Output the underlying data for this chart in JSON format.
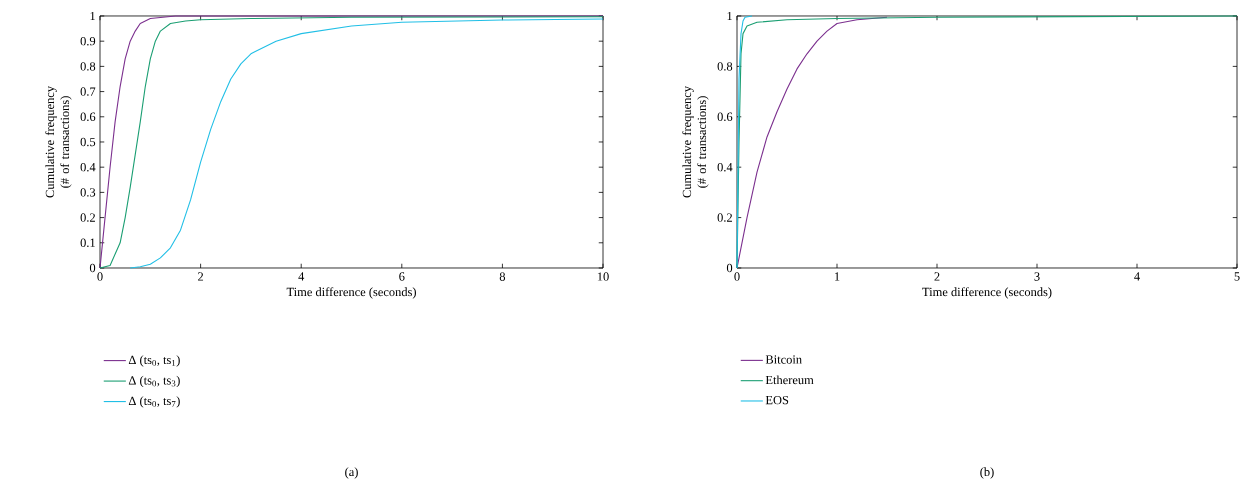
{
  "chart_data": [
    {
      "type": "line",
      "xlabel": "Time difference (seconds)",
      "ylabel": "Cumulative frequency (# of transactions)",
      "xlim": [
        0,
        10
      ],
      "ylim": [
        0,
        1
      ],
      "xticks": [
        0,
        2,
        4,
        6,
        8,
        10
      ],
      "yticks": [
        0,
        0.1,
        0.2,
        0.3,
        0.4,
        0.5,
        0.6,
        0.7,
        0.8,
        0.9,
        1
      ],
      "legend": "bottom left",
      "grid": false,
      "marker": "none",
      "line_style": "solid",
      "annotations": [
        "(a)"
      ],
      "series": [
        {
          "name": "Δ (ts$_{0}$, ts$_{1}$)",
          "color": "#7b2f8e",
          "x": [
            0,
            0.1,
            0.2,
            0.3,
            0.4,
            0.5,
            0.6,
            0.7,
            0.8,
            1.0,
            1.5,
            10
          ],
          "values": [
            0,
            0.2,
            0.4,
            0.58,
            0.72,
            0.83,
            0.9,
            0.94,
            0.97,
            0.99,
            1.0,
            1.0
          ]
        },
        {
          "name": "Δ (ts$_{0}$, ts$_{3}$)",
          "color": "#1a9e72",
          "x": [
            0,
            0.2,
            0.4,
            0.5,
            0.6,
            0.7,
            0.8,
            0.9,
            1.0,
            1.1,
            1.2,
            1.4,
            1.7,
            2,
            3,
            5,
            10
          ],
          "values": [
            0,
            0.01,
            0.1,
            0.2,
            0.32,
            0.45,
            0.58,
            0.72,
            0.83,
            0.9,
            0.94,
            0.97,
            0.98,
            0.985,
            0.99,
            0.995,
            0.997
          ]
        },
        {
          "name": "Δ (ts$_{0}$, ts$_{7}$)",
          "color": "#21bfe6",
          "x": [
            0.6,
            0.8,
            1.0,
            1.2,
            1.4,
            1.6,
            1.8,
            2.0,
            2.2,
            2.4,
            2.6,
            2.8,
            3.0,
            3.5,
            4,
            5,
            6,
            8,
            10
          ],
          "values": [
            0,
            0.005,
            0.015,
            0.04,
            0.08,
            0.15,
            0.27,
            0.42,
            0.55,
            0.66,
            0.75,
            0.81,
            0.85,
            0.9,
            0.93,
            0.96,
            0.975,
            0.984,
            0.988
          ]
        }
      ]
    },
    {
      "type": "line",
      "xlabel": "Time difference (seconds)",
      "ylabel": "Cumulative frequency (# of transactions)",
      "xlim": [
        0,
        5
      ],
      "ylim": [
        0,
        1
      ],
      "xticks": [
        0,
        1,
        2,
        3,
        4,
        5
      ],
      "yticks": [
        0,
        0.2,
        0.4,
        0.6,
        0.8,
        1
      ],
      "legend": "bottom left",
      "grid": false,
      "marker": "none",
      "line_style": "solid",
      "annotations": [
        "(b)"
      ],
      "series": [
        {
          "name": "Bitcoin",
          "color": "#7b2f8e",
          "x": [
            0,
            0.1,
            0.2,
            0.3,
            0.4,
            0.5,
            0.6,
            0.7,
            0.8,
            0.9,
            1.0,
            1.2,
            1.5
          ],
          "values": [
            0,
            0.2,
            0.38,
            0.52,
            0.62,
            0.71,
            0.79,
            0.85,
            0.9,
            0.94,
            0.97,
            0.985,
            0.995
          ]
        },
        {
          "name": "Ethereum",
          "color": "#1a9e72",
          "x": [
            0,
            0.02,
            0.04,
            0.06,
            0.1,
            0.2,
            0.5,
            1,
            2,
            5
          ],
          "values": [
            0,
            0.5,
            0.85,
            0.93,
            0.96,
            0.975,
            0.985,
            0.99,
            0.995,
            1.0
          ]
        },
        {
          "name": "EOS",
          "color": "#21bfe6",
          "x": [
            0,
            0.01,
            0.02,
            0.04,
            0.06,
            0.08,
            0.15
          ],
          "values": [
            0,
            0.4,
            0.75,
            0.93,
            0.98,
            0.995,
            1.0
          ]
        }
      ]
    }
  ]
}
